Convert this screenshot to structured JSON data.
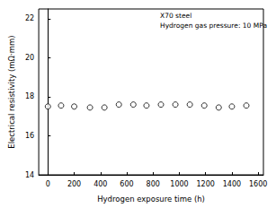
{
  "chart_data": {
    "type": "scatter",
    "x_label": "Hydrogen exposure time (h)",
    "y_label": "Electrical resistivity (mΩ·mm)",
    "annotations": [
      "X70 steel",
      "Hydrogen gas pressure: 10 MPa"
    ],
    "x": [
      0,
      100,
      200,
      320,
      430,
      540,
      650,
      750,
      860,
      970,
      1080,
      1190,
      1300,
      1400,
      1510
    ],
    "values": [
      17.5,
      17.55,
      17.5,
      17.45,
      17.45,
      17.6,
      17.6,
      17.55,
      17.6,
      17.6,
      17.6,
      17.55,
      17.45,
      17.5,
      17.55
    ],
    "color": "#000000",
    "marker": "open circle",
    "xlim": [
      -70,
      1640
    ],
    "xticks": [
      0,
      200,
      400,
      600,
      800,
      1000,
      1200,
      1400,
      1600
    ],
    "ylim": [
      14,
      22.5
    ],
    "yticks": [
      14,
      16,
      18,
      20,
      22
    ],
    "grid": false
  }
}
